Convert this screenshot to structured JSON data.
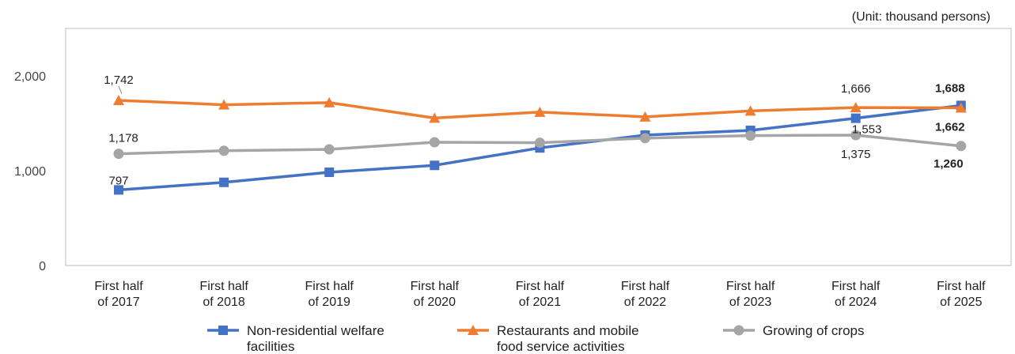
{
  "unit_label": "(Unit: thousand persons)",
  "chart_data": {
    "type": "line",
    "categories": [
      [
        "First half",
        "of 2017"
      ],
      [
        "First half",
        "of 2018"
      ],
      [
        "First half",
        "of 2019"
      ],
      [
        "First half",
        "of 2020"
      ],
      [
        "First half",
        "of 2021"
      ],
      [
        "First half",
        "of 2022"
      ],
      [
        "First half",
        "of 2023"
      ],
      [
        "First half",
        "of 2024"
      ],
      [
        "First half",
        "of 2025"
      ]
    ],
    "ylim": [
      0,
      2000
    ],
    "yticks": [
      "0",
      "1,000",
      "2,000"
    ],
    "ytick_values": [
      0,
      1000,
      2000
    ],
    "grid": false,
    "legend_position": "bottom",
    "series": [
      {
        "name": [
          "Non-residential welfare",
          "facilities"
        ],
        "color": "#4472C4",
        "marker": "square",
        "values": [
          797,
          877,
          983,
          1056,
          1240,
          1375,
          1425,
          1553,
          1688
        ],
        "labels": [
          {
            "index": 0,
            "text": "797",
            "bold": false,
            "dx": 0,
            "dy": -12
          },
          {
            "index": 7,
            "text": "1,553",
            "bold": false,
            "dx": 14,
            "dy": 14
          },
          {
            "index": 8,
            "text": "1,688",
            "bold": true,
            "dx": -14,
            "dy": -22
          }
        ]
      },
      {
        "name": [
          "Restaurants and mobile",
          "food service activities"
        ],
        "color": "#ED7D31",
        "marker": "triangle",
        "values": [
          1742,
          1695,
          1718,
          1555,
          1618,
          1568,
          1630,
          1666,
          1662
        ],
        "labels": [
          {
            "index": 0,
            "text": "1,742",
            "bold": false,
            "dx": 0,
            "dy": -26
          },
          {
            "index": 7,
            "text": "1,666",
            "bold": false,
            "dx": 0,
            "dy": -24
          },
          {
            "index": 8,
            "text": "1,662",
            "bold": true,
            "dx": -14,
            "dy": 24
          }
        ]
      },
      {
        "name": [
          "Growing of crops"
        ],
        "color": "#A5A5A5",
        "marker": "circle",
        "values": [
          1178,
          1210,
          1225,
          1300,
          1295,
          1343,
          1370,
          1375,
          1260
        ],
        "labels": [
          {
            "index": 0,
            "text": "1,178",
            "bold": false,
            "dx": 6,
            "dy": -20
          },
          {
            "index": 7,
            "text": "1,375",
            "bold": false,
            "dx": 0,
            "dy": 24
          },
          {
            "index": 8,
            "text": "1,260",
            "bold": true,
            "dx": -16,
            "dy": 22
          }
        ]
      }
    ]
  }
}
